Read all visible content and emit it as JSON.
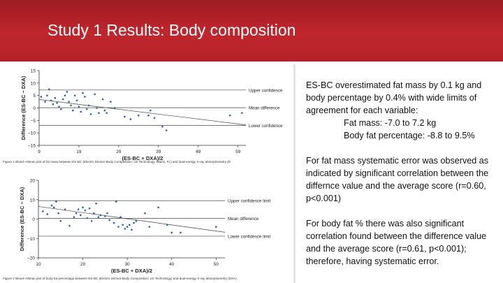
{
  "slide": {
    "title": "Study 1 Results: Body composition"
  },
  "body_text": {
    "p1": "ES-BC overestimated fat mass by 0.1 kg and body percentage by 0.4% with wide limits of agreement for each variable:",
    "fat_mass": "Fat mass: -7.0 to 7.2 kg",
    "body_fat": "Body fat percentage: -8.8 to 9.5%",
    "p2": "For fat mass systematic error was observed as indicated by significant correlation between the differnce value and the average score (r=0.60, p<0.001)",
    "p3": "For body fat % there was also significant correlation found between the difference value and the average score (r=0.61, p<0.001); therefore, having systematic error."
  },
  "chart_data": [
    {
      "type": "scatter",
      "xlabel": "(ES-BC + DXA)/2",
      "ylabel": "Difference (ES-BC − DXA)",
      "xlim": [
        9,
        61
      ],
      "ylim": [
        -15,
        15
      ],
      "xticks": [
        9,
        19,
        29,
        39,
        49,
        59
      ],
      "yticks": [
        -15,
        -10,
        -5,
        0,
        5,
        10,
        15
      ],
      "reference_lines": [
        {
          "name": "Upper confidence",
          "y": 7.2
        },
        {
          "name": "Mean difference",
          "y": 0.1
        },
        {
          "name": "Lower confidence",
          "y": -7.0
        }
      ],
      "trend_line": {
        "x": [
          9,
          61
        ],
        "y": [
          3.4,
          -6.8
        ]
      },
      "points": [
        [
          9.5,
          4.5
        ],
        [
          10.5,
          2.5
        ],
        [
          11,
          5
        ],
        [
          11.5,
          7.5
        ],
        [
          12,
          3
        ],
        [
          12.5,
          1.5
        ],
        [
          13,
          4
        ],
        [
          13.5,
          2
        ],
        [
          14,
          0.5
        ],
        [
          14.5,
          -0.5
        ],
        [
          15,
          3.5
        ],
        [
          15.5,
          5
        ],
        [
          16,
          6.5
        ],
        [
          16.5,
          2.5
        ],
        [
          17,
          1
        ],
        [
          17.5,
          -1
        ],
        [
          18,
          5
        ],
        [
          18.5,
          3
        ],
        [
          19,
          0.5
        ],
        [
          19.5,
          -1.5
        ],
        [
          20,
          6
        ],
        [
          20.5,
          4.5
        ],
        [
          21,
          -0.5
        ],
        [
          21.5,
          1
        ],
        [
          22,
          -2.5
        ],
        [
          23,
          5.5
        ],
        [
          23.5,
          0
        ],
        [
          24,
          -2
        ],
        [
          25,
          3.5
        ],
        [
          25.5,
          -1
        ],
        [
          26,
          -2
        ],
        [
          27,
          2.5
        ],
        [
          28,
          0
        ],
        [
          30.5,
          -3.5
        ],
        [
          32,
          -4.5
        ],
        [
          34,
          -3
        ],
        [
          36.5,
          -3
        ],
        [
          37,
          -1
        ],
        [
          38,
          -4
        ],
        [
          40,
          -7.5
        ],
        [
          41,
          -9
        ],
        [
          57,
          -3
        ],
        [
          60,
          -2
        ]
      ],
      "caption": "Figure 1 Bland–Altman plot of fat mass between ES-BC (Electro Sensor-Body Composition; LD Technology, Miami, FL) and dual-energy X-ray absorptiometry (D"
    },
    {
      "type": "scatter",
      "xlabel": "(ES-BC + DXA)/2",
      "ylabel": "Difference (ES-BC − DXA)",
      "xlim": [
        10,
        52
      ],
      "ylim": [
        -20,
        20
      ],
      "xticks": [
        10,
        20,
        30,
        40,
        50
      ],
      "yticks": [
        -20,
        -10,
        0,
        10,
        20
      ],
      "reference_lines": [
        {
          "name": "Upper confidence limit",
          "y": 9.5
        },
        {
          "name": "Mean difference",
          "y": 0.4
        },
        {
          "name": "Lower confidence limit",
          "y": -8.8
        }
      ],
      "trend_line": {
        "x": [
          10,
          52
        ],
        "y": [
          6.5,
          -6.8
        ]
      },
      "points": [
        [
          11,
          4
        ],
        [
          12,
          2.5
        ],
        [
          13,
          7
        ],
        [
          13.5,
          6
        ],
        [
          14,
          9
        ],
        [
          14.5,
          3
        ],
        [
          15,
          -1
        ],
        [
          16,
          5
        ],
        [
          17,
          -3.5
        ],
        [
          18,
          1
        ],
        [
          18.5,
          3
        ],
        [
          19,
          5
        ],
        [
          19.5,
          2
        ],
        [
          20,
          6
        ],
        [
          20.5,
          4.5
        ],
        [
          21,
          0.5
        ],
        [
          21.5,
          5.5
        ],
        [
          22,
          -1
        ],
        [
          22.5,
          3
        ],
        [
          23,
          8
        ],
        [
          23.5,
          1
        ],
        [
          24,
          2
        ],
        [
          25,
          1.5
        ],
        [
          25.5,
          3
        ],
        [
          26,
          -0.5
        ],
        [
          27,
          -2
        ],
        [
          27.5,
          9
        ],
        [
          28,
          -4
        ],
        [
          28.5,
          1
        ],
        [
          29,
          -3
        ],
        [
          29.5,
          -5
        ],
        [
          30,
          -4
        ],
        [
          30.5,
          -3
        ],
        [
          31,
          -5.5
        ],
        [
          31.5,
          -2
        ],
        [
          32,
          -1
        ],
        [
          34,
          3
        ],
        [
          35,
          -4
        ],
        [
          37,
          6
        ],
        [
          39,
          -3
        ],
        [
          40,
          -7
        ],
        [
          42,
          -7
        ],
        [
          50,
          -4
        ]
      ],
      "caption": "Figure 2 Bland–Altman plot of body fat percentage between ES-BC (Electro Sensor-Body Composition; LD Technology) and dual-energy X-ray absorptiometry (DXA)."
    }
  ]
}
